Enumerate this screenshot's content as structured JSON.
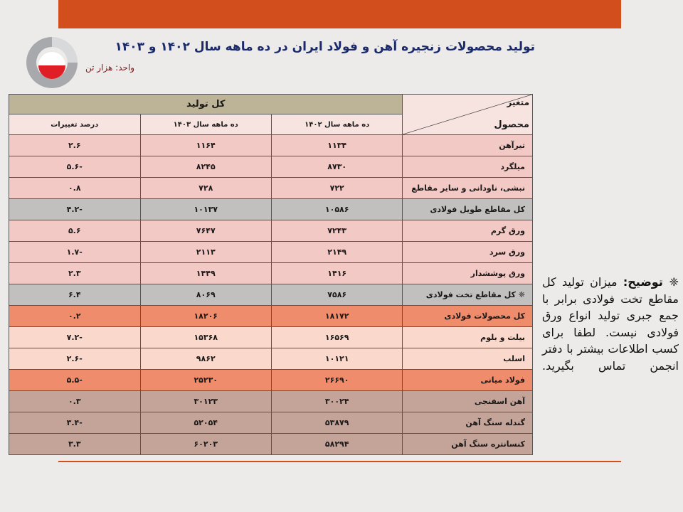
{
  "title": "تولید محصولات زنجیره آهن و فولاد ایران در ده ماهه سال ۱۴۰۲ و ۱۴۰۳",
  "unit": "واحد: هزار تن",
  "colors": {
    "accent": "#d24e1d",
    "title": "#1b2a6b",
    "header": "#bdb397"
  },
  "table": {
    "corner_variable": "متغیر",
    "corner_product": "محصول",
    "group_header": "کل تولید",
    "columns": [
      "ده ماهه سال ۱۴۰۲",
      "ده ماهه سال ۱۴۰۳",
      "درصد تغییرات"
    ],
    "rows": [
      {
        "product": "تیرآهن",
        "y1402": "۱۱۳۴",
        "y1403": "۱۱۶۴",
        "change": "۲.۶",
        "style": "pink"
      },
      {
        "product": "میلگرد",
        "y1402": "۸۷۳۰",
        "y1403": "۸۲۴۵",
        "change": "-۵.۶",
        "style": "pink"
      },
      {
        "product": "نبشی، ناودانی و سایر مقاطع",
        "y1402": "۷۲۲",
        "y1403": "۷۲۸",
        "change": "۰.۸",
        "style": "pink"
      },
      {
        "product": "کل مقاطع طویل فولادی",
        "y1402": "۱۰۵۸۶",
        "y1403": "۱۰۱۳۷",
        "change": "-۴.۲",
        "style": "gray"
      },
      {
        "product": "ورق گرم",
        "y1402": "۷۲۴۳",
        "y1403": "۷۶۴۷",
        "change": "۵.۶",
        "style": "pink"
      },
      {
        "product": "ورق سرد",
        "y1402": "۲۱۴۹",
        "y1403": "۲۱۱۳",
        "change": "-۱.۷",
        "style": "pink"
      },
      {
        "product": "ورق پوششدار",
        "y1402": "۱۴۱۶",
        "y1403": "۱۴۴۹",
        "change": "۲.۳",
        "style": "pink"
      },
      {
        "product": "❈ کل مقاطع تخت فولادی",
        "y1402": "۷۵۸۶",
        "y1403": "۸۰۶۹",
        "change": "۶.۴",
        "style": "gray"
      },
      {
        "product": "کل محصولات فولادی",
        "y1402": "۱۸۱۷۲",
        "y1403": "۱۸۲۰۶",
        "change": "۰.۲",
        "style": "orange"
      },
      {
        "product": "بیلت و بلوم",
        "y1402": "۱۶۵۶۹",
        "y1403": "۱۵۳۶۸",
        "change": "-۷.۲",
        "style": "peach"
      },
      {
        "product": "اسلب",
        "y1402": "۱۰۱۲۱",
        "y1403": "۹۸۶۲",
        "change": "-۲.۶",
        "style": "peach"
      },
      {
        "product": "فولاد میانی",
        "y1402": "۲۶۶۹۰",
        "y1403": "۲۵۲۳۰",
        "change": "-۵.۵",
        "style": "orange"
      },
      {
        "product": "آهن اسفنجی",
        "y1402": "۳۰۰۲۴",
        "y1403": "۳۰۱۲۳",
        "change": "۰.۳",
        "style": "brown"
      },
      {
        "product": "گندله سنگ آهن",
        "y1402": "۵۳۸۷۹",
        "y1403": "۵۲۰۵۴",
        "change": "-۳.۴",
        "style": "brown"
      },
      {
        "product": "کنسانتره سنگ آهن",
        "y1402": "۵۸۲۹۴",
        "y1403": "۶۰۲۰۳",
        "change": "۳.۳",
        "style": "brown"
      }
    ]
  },
  "note": {
    "label": "❈ توضیح:",
    "text": "میزان تولید کل مقاطع تخت فولادی برابر با جمع جبری تولید انواع ورق فولادی نیست. لطفا برای کسب اطلاعات بیشتر با دفتر انجمن تماس بگیرید."
  }
}
